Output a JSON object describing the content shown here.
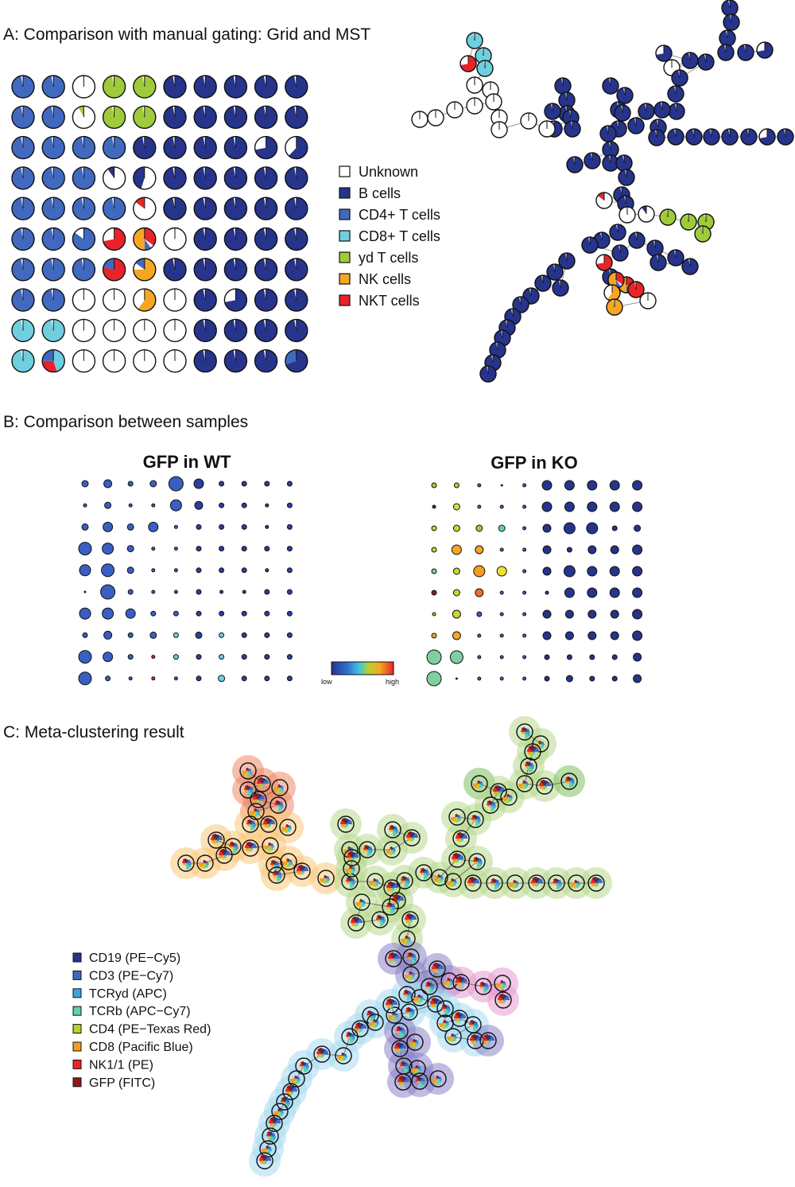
{
  "panels": {
    "a_title": "A: Comparison with manual gating: Grid and MST",
    "b_title": "B: Comparison between samples",
    "c_title": "C: Meta-clustering result",
    "wt_title": "GFP in WT",
    "ko_title": "GFP in KO",
    "scale_low": "low",
    "scale_high": "high"
  },
  "cell_legend": [
    {
      "label": "Unknown",
      "color": "#ffffff"
    },
    {
      "label": "B cells",
      "color": "#27348b"
    },
    {
      "label": "CD4+ T cells",
      "color": "#4169c0"
    },
    {
      "label": "CD8+ T cells",
      "color": "#6fcfe0"
    },
    {
      "label": "yd T cells",
      "color": "#9fcb3b"
    },
    {
      "label": "NK cells",
      "color": "#f5a623"
    },
    {
      "label": "NKT cells",
      "color": "#e8232a"
    }
  ],
  "marker_legend": [
    {
      "label": "CD19 (PE−Cy5)",
      "color": "#27348b"
    },
    {
      "label": "CD3 (PE−Cy7)",
      "color": "#4169c0"
    },
    {
      "label": "TCRyd (APC)",
      "color": "#3ea4dc"
    },
    {
      "label": "TCRb (APC−Cy7)",
      "color": "#5fd0b0"
    },
    {
      "label": "CD4 (PE−Texas Red)",
      "color": "#b7d12e"
    },
    {
      "label": "CD8 (Pacific Blue)",
      "color": "#f39c1f"
    },
    {
      "label": "NK1/1 (PE)",
      "color": "#e8232a"
    },
    {
      "label": "GFP (FITC)",
      "color": "#8b1a1a"
    }
  ],
  "grid_cells": [
    [
      "C",
      "C",
      "U",
      "Y",
      "Y",
      "B",
      "B",
      "B",
      "B",
      "B"
    ],
    [
      "C",
      "C",
      "UY",
      "Y",
      "Y",
      "B",
      "B",
      "B",
      "B",
      "B"
    ],
    [
      "C",
      "C",
      "C",
      "C",
      "B",
      "B",
      "B",
      "B",
      "BU",
      "BU2"
    ],
    [
      "C",
      "C",
      "C",
      "UB",
      "UB2",
      "B",
      "B",
      "B",
      "B",
      "B"
    ],
    [
      "C",
      "C",
      "C",
      "C",
      "UR",
      "B",
      "B",
      "B",
      "B",
      "B"
    ],
    [
      "C",
      "C",
      "CU",
      "RW",
      "RC",
      "U",
      "B",
      "B",
      "B",
      "B"
    ],
    [
      "C",
      "C",
      "C",
      "RC2",
      "OC",
      "B",
      "B",
      "B",
      "B",
      "B"
    ],
    [
      "C",
      "C",
      "U",
      "U",
      "OU",
      "U",
      "B",
      "BU",
      "B",
      "B"
    ],
    [
      "T",
      "T",
      "U",
      "U",
      "U",
      "U",
      "B",
      "B",
      "B",
      "B"
    ],
    [
      "T",
      "TR",
      "U",
      "U",
      "U",
      "U",
      "B",
      "B",
      "B",
      "BC"
    ]
  ],
  "wt_sizes": [
    [
      4,
      5,
      3,
      4,
      9,
      6,
      3,
      3,
      3,
      3
    ],
    [
      2,
      4,
      2,
      2,
      7,
      5,
      3,
      3,
      2,
      3
    ],
    [
      4,
      6,
      4,
      6,
      2,
      3,
      3,
      3,
      2,
      3
    ],
    [
      8,
      7,
      4,
      2,
      2,
      3,
      3,
      3,
      3,
      3
    ],
    [
      7,
      8,
      4,
      2,
      2,
      3,
      3,
      3,
      2,
      3
    ],
    [
      1,
      9,
      3,
      2,
      2,
      3,
      2,
      2,
      3,
      3
    ],
    [
      7,
      7,
      6,
      3,
      3,
      3,
      3,
      3,
      3,
      3
    ],
    [
      3,
      5,
      3,
      4,
      3,
      4,
      3,
      3,
      3,
      3
    ],
    [
      8,
      6,
      3,
      2,
      3,
      3,
      3,
      3,
      3,
      3
    ],
    [
      8,
      3,
      2,
      2,
      2,
      3,
      4,
      3,
      3,
      3
    ]
  ],
  "ko_sizes": [
    [
      3,
      3,
      2,
      1,
      2,
      6,
      6,
      6,
      6,
      6
    ],
    [
      2,
      4,
      2,
      2,
      2,
      6,
      6,
      6,
      6,
      6
    ],
    [
      3,
      4,
      4,
      4,
      2,
      5,
      7,
      7,
      3,
      4
    ],
    [
      3,
      6,
      5,
      2,
      2,
      5,
      3,
      5,
      5,
      6
    ],
    [
      3,
      4,
      7,
      6,
      2,
      5,
      7,
      6,
      6,
      6
    ],
    [
      3,
      4,
      5,
      2,
      2,
      2,
      6,
      6,
      6,
      6
    ],
    [
      2,
      5,
      3,
      2,
      2,
      5,
      5,
      5,
      5,
      6
    ],
    [
      3,
      5,
      2,
      2,
      2,
      5,
      5,
      5,
      5,
      6
    ],
    [
      9,
      8,
      2,
      2,
      2,
      3,
      3,
      3,
      3,
      5
    ],
    [
      9,
      1,
      2,
      2,
      2,
      3,
      4,
      3,
      3,
      5
    ]
  ]
}
